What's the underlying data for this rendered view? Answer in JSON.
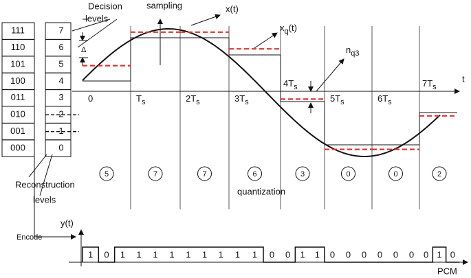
{
  "code_words": [
    "111",
    "110",
    "101",
    "100",
    "011",
    "010",
    "001",
    "000"
  ],
  "levels": [
    7,
    6,
    5,
    4,
    3,
    2,
    1,
    0
  ],
  "decision_levels_label": [
    "Decision",
    "levels"
  ],
  "delta": "Δ",
  "sampling": "sampling",
  "signal_label": "x(t)",
  "quantized_label": {
    "text": "x",
    "sub": "q",
    "suffix": "(t)"
  },
  "noise_label": {
    "text": "n",
    "sub": "q3"
  },
  "time_axis_label": "t",
  "sample_times": [
    {
      "text": "0"
    },
    {
      "text": "T",
      "sub": "s"
    },
    {
      "text": "2T",
      "sub": "s"
    },
    {
      "text": "3T",
      "sub": "s"
    },
    {
      "text": "4T",
      "sub": "s"
    },
    {
      "text": "5T",
      "sub": "s"
    },
    {
      "text": "6T",
      "sub": "s"
    },
    {
      "text": "7T",
      "sub": "s"
    }
  ],
  "sample_levels": [
    5,
    7,
    7,
    6,
    3,
    0,
    0,
    2
  ],
  "quantization_label": "quantization",
  "reconstruction_levels_label": [
    "Reconstruction",
    "levels"
  ],
  "output_axis_label": "y(t)",
  "encode_label": "Encode",
  "pcm_bits": [
    "1",
    "0",
    "1",
    "1",
    "1",
    "1",
    "1",
    "1",
    "1",
    "1",
    "1",
    "0",
    "0",
    "1",
    "1",
    "0",
    "0",
    "0",
    "0",
    "0",
    "0",
    "0",
    "1",
    "0"
  ],
  "pcm_label": "PCM"
}
